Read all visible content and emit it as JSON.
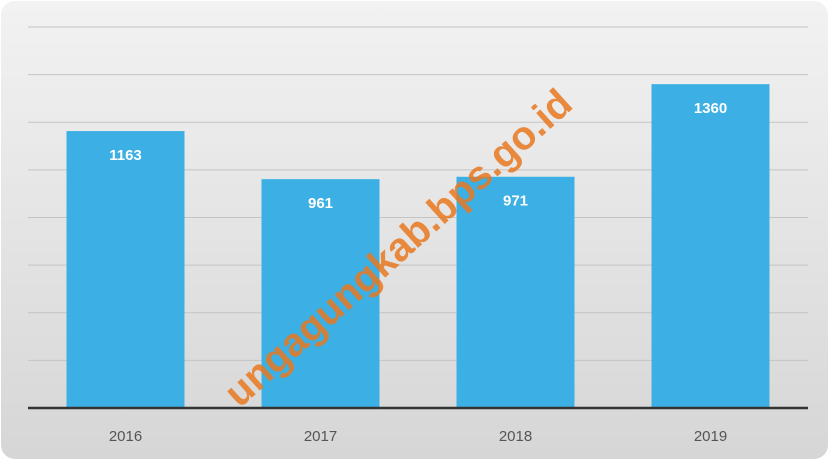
{
  "chart_data": {
    "type": "bar",
    "categories": [
      "2016",
      "2017",
      "2018",
      "2019"
    ],
    "values": [
      1163,
      961,
      971,
      1360
    ],
    "color": "#3cb0e4",
    "ylim": [
      0,
      1600
    ],
    "yticks": [
      0,
      200,
      400,
      600,
      800,
      1000,
      1200,
      1400,
      1600
    ],
    "grid": true,
    "watermark": "ungagungkab.bps.go.id"
  }
}
